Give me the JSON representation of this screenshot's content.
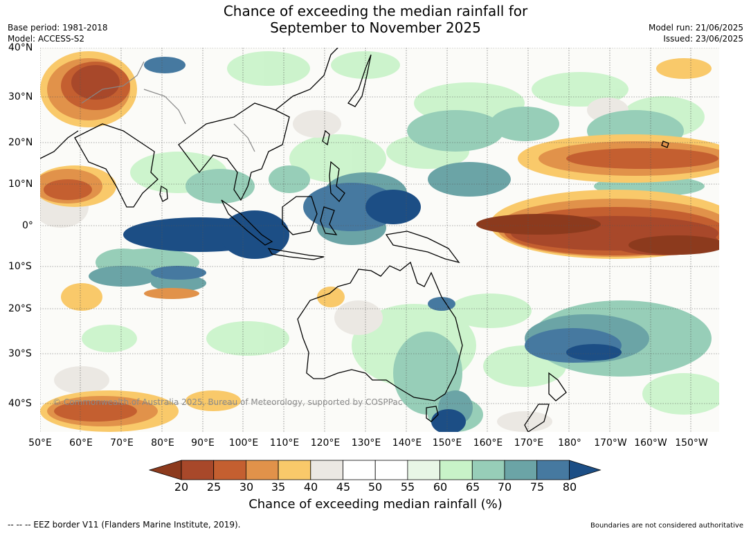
{
  "title": {
    "line1": "Chance of exceeding the median rainfall for",
    "line2": "September to November 2025"
  },
  "meta_left": {
    "base_period": "Base period: 1981-2018",
    "model": "Model: ACCESS-S2"
  },
  "meta_right": {
    "model_run": "Model run: 21/06/2025",
    "issued": "Issued: 23/06/2025"
  },
  "lat_labels": [
    "40°N",
    "30°N",
    "20°N",
    "10°N",
    "0°",
    "10°S",
    "20°S",
    "30°S",
    "40°S"
  ],
  "lon_labels": [
    "50°E",
    "60°E",
    "70°E",
    "80°E",
    "90°E",
    "100°E",
    "110°E",
    "120°E",
    "130°E",
    "140°E",
    "150°E",
    "160°E",
    "170°E",
    "180°",
    "170°W",
    "160°W",
    "150°W"
  ],
  "copyright": "© Commonwealth of Australia 2025, Bureau of Meteorology, supported by COSPPac",
  "colorbar": {
    "ticks": [
      "20",
      "25",
      "30",
      "35",
      "40",
      "45",
      "50",
      "55",
      "60",
      "65",
      "70",
      "75",
      "80"
    ],
    "colors": [
      "#8c3a1d",
      "#a8482a",
      "#c45f30",
      "#e1924a",
      "#f9c96a",
      "#ebe8e3",
      "#ffffff",
      "#ffffff",
      "#e8f6e6",
      "#c8f3c8",
      "#97ceb8",
      "#6ba4a6",
      "#4679a0",
      "#1c4e85"
    ],
    "label": "Chance of exceeding median rainfall (%)"
  },
  "footer": {
    "left": "--  --  -- EEZ border V11 (Flanders Marine Institute, 2019).",
    "right": "Boundaries are not considered authoritative"
  }
}
